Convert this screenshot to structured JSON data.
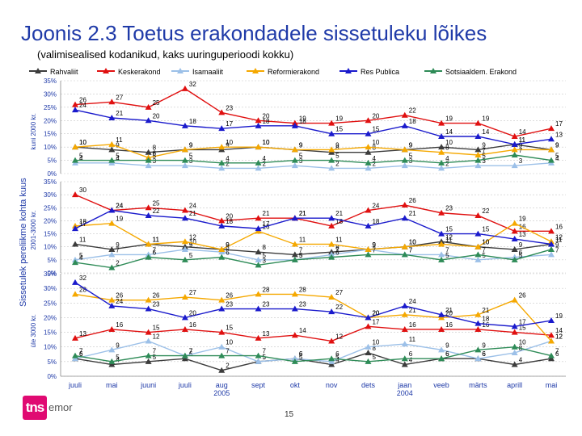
{
  "header": {
    "title": "Joonis 2.3 Toetus erakondadele sissetuleku lõikes",
    "subtitle": "(valimisealised kodanikud, kaks uuringuperioodi kokku)"
  },
  "footer": {
    "logo_a": "tns",
    "logo_b": "emor",
    "page": "15"
  },
  "chart_data": {
    "type": "line",
    "ylabel": "Sissetulek pereliikme kohta kuus",
    "categories": [
      "juuli",
      "mai",
      "juuni",
      "juuli",
      "aug\n2005",
      "sept",
      "okt",
      "nov",
      "dets",
      "jaan\n2004",
      "veeb",
      "märts",
      "aprill",
      "mai"
    ],
    "legend": [
      {
        "name": "Rahvaliit",
        "color": "#3c3c3c",
        "marker": "triangle"
      },
      {
        "name": "Keskerakond",
        "color": "#e01010",
        "marker": "triangle"
      },
      {
        "name": "Isamaaliit",
        "color": "#9cc0e8",
        "marker": "triangle"
      },
      {
        "name": "Reformierakond",
        "color": "#f5a800",
        "marker": "triangle"
      },
      {
        "name": "Res Publica",
        "color": "#1a1acc",
        "marker": "triangle"
      },
      {
        "name": "Sotsiaaldem. Erakond",
        "color": "#2e8b57",
        "marker": "triangle"
      }
    ],
    "panels": [
      {
        "label": "kuni 2000 kr.",
        "ylim": [
          0,
          35
        ],
        "ticks": [
          "0%",
          "5%",
          "10%",
          "15%",
          "20%",
          "25%",
          "30%",
          "35%"
        ],
        "series": [
          {
            "name": "Rahvaliit",
            "values": [
              10,
              9,
              8,
              9,
              9,
              10,
              9,
              8,
              8,
              9,
              10,
              9,
              11,
              9
            ]
          },
          {
            "name": "Keskerakond",
            "values": [
              26,
              27,
              25,
              32,
              23,
              20,
              19,
              19,
              20,
              22,
              19,
              19,
              14,
              17
            ]
          },
          {
            "name": "Isamaaliit",
            "values": [
              4,
              4,
              3,
              3,
              2,
              2,
              3,
              2,
              2,
              3,
              2,
              3,
              3,
              4
            ]
          },
          {
            "name": "Reformierakond",
            "values": [
              10,
              11,
              6,
              9,
              10,
              10,
              9,
              9,
              10,
              9,
              8,
              7,
              9,
              9
            ]
          },
          {
            "name": "Res Publica",
            "values": [
              24,
              21,
              20,
              18,
              17,
              18,
              18,
              15,
              15,
              18,
              14,
              14,
              11,
              13
            ]
          },
          {
            "name": "Sotsiaaldem. Erakond",
            "values": [
              5,
              5,
              5,
              5,
              4,
              4,
              5,
              5,
              4,
              5,
              4,
              5,
              7,
              5
            ]
          }
        ]
      },
      {
        "label": "2001-3000 kr.",
        "ylim": [
          0,
          35
        ],
        "ticks": [
          "0%",
          "5%",
          "10%",
          "15%",
          "20%",
          "25%",
          "30%",
          "35%"
        ],
        "series": [
          {
            "name": "Rahvaliit",
            "values": [
              11,
              9,
              11,
              10,
              9,
              8,
              7,
              8,
              9,
              10,
              12,
              10,
              9,
              11
            ]
          },
          {
            "name": "Keskerakond",
            "values": [
              30,
              24,
              25,
              24,
              20,
              21,
              21,
              18,
              24,
              26,
              23,
              22,
              16,
              16
            ]
          },
          {
            "name": "Isamaaliit",
            "values": [
              5,
              7,
              7,
              9,
              8,
              5,
              5,
              7,
              9,
              7,
              7,
              5,
              6,
              7
            ]
          },
          {
            "name": "Reformierakond",
            "values": [
              18,
              19,
              11,
              12,
              9,
              16,
              11,
              11,
              9,
              10,
              11,
              10,
              19,
              12
            ]
          },
          {
            "name": "Res Publica",
            "values": [
              17,
              24,
              22,
              21,
              18,
              17,
              21,
              21,
              18,
              21,
              15,
              15,
              13,
              11
            ]
          },
          {
            "name": "Sotsiaaldem. Erakond",
            "values": [
              4,
              2,
              6,
              5,
              6,
              3,
              5,
              6,
              7,
              7,
              5,
              7,
              5,
              9
            ]
          }
        ]
      },
      {
        "label": "üle 3000 kr.",
        "ylim": [
          0,
          35
        ],
        "ticks": [
          "0%",
          "5%",
          "10%",
          "15%",
          "20%",
          "25%",
          "30%",
          "35%"
        ],
        "series": [
          {
            "name": "Rahvaliit",
            "values": [
              6,
              4,
              5,
              6,
              2,
              5,
              6,
              4,
              8,
              4,
              6,
              6,
              4,
              6
            ]
          },
          {
            "name": "Keskerakond",
            "values": [
              13,
              16,
              15,
              16,
              15,
              13,
              14,
              12,
              17,
              16,
              16,
              16,
              15,
              14
            ]
          },
          {
            "name": "Isamaaliit",
            "values": [
              6,
              9,
              12,
              7,
              10,
              5,
              6,
              5,
              10,
              11,
              9,
              6,
              8,
              12
            ]
          },
          {
            "name": "Reformierakond",
            "values": [
              28,
              26,
              26,
              27,
              26,
              28,
              28,
              27,
              20,
              21,
              20,
              21,
              26,
              12
            ]
          },
          {
            "name": "Res Publica",
            "values": [
              32,
              24,
              23,
              20,
              23,
              23,
              23,
              22,
              20,
              24,
              21,
              18,
              17,
              19
            ]
          },
          {
            "name": "Sotsiaaldem. Erakond",
            "values": [
              7,
              5,
              7,
              7,
              7,
              7,
              5,
              6,
              5,
              6,
              6,
              9,
              10,
              7
            ]
          }
        ]
      }
    ]
  }
}
